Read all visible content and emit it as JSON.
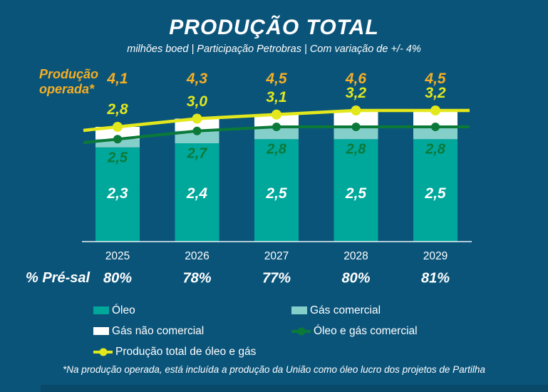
{
  "title": "PRODUÇÃO TOTAL",
  "subtitle": "milhões boed | Participação Petrobras | Com variação de +/- 4%",
  "left_labels": {
    "producao_operada": "Produção\noperada*",
    "presal": "% Pré-sal"
  },
  "footnote": "*Na produção operada, está incluída a produção da União como óleo lucro dos projetos de Partilha",
  "colors": {
    "background": "#0A547A",
    "oleo_teal": "#00A79B",
    "gas_comercial_teal": "#85CFCB",
    "gas_nao_comercial_white": "#FFFFFF",
    "linha_verde": "#0B7A38",
    "linha_amarela": "#E3E81C",
    "gold": "#F5AF24",
    "axis_line": "#EAF2F5"
  },
  "chart_data": {
    "type": "bar",
    "subtype": "stacked-bars-with-lines",
    "categories": [
      "2025",
      "2026",
      "2027",
      "2028",
      "2029"
    ],
    "ylim": [
      0,
      3.4
    ],
    "grid": false,
    "legend_position": "bottom",
    "series": [
      {
        "name": "Óleo",
        "type": "bar-segment",
        "color": "#00A79B",
        "values": [
          2.3,
          2.4,
          2.5,
          2.5,
          2.5
        ],
        "labels": [
          "2,3",
          "2,4",
          "2,5",
          "2,5",
          "2,5"
        ],
        "label_color": "#FFFFFF"
      },
      {
        "name": "Gás comercial",
        "type": "bar-segment",
        "color": "#85CFCB",
        "values": [
          0.2,
          0.3,
          0.3,
          0.3,
          0.3
        ],
        "labels": []
      },
      {
        "name": "Gás não comercial",
        "type": "bar-segment",
        "color": "#FFFFFF",
        "values": [
          0.3,
          0.3,
          0.3,
          0.4,
          0.4
        ],
        "labels": []
      },
      {
        "name": "Óleo e gás comercial",
        "type": "line",
        "color": "#0B7A38",
        "values": [
          2.5,
          2.7,
          2.8,
          2.8,
          2.8
        ],
        "labels": [
          "2,5",
          "2,7",
          "2,8",
          "2,8",
          "2,8"
        ],
        "label_color": "#0B7A38"
      },
      {
        "name": "Produção total de óleo e gás",
        "type": "line",
        "color": "#E3E81C",
        "values": [
          2.8,
          3.0,
          3.1,
          3.2,
          3.2
        ],
        "labels": [
          "2,8",
          "3,0",
          "3,1",
          "3,2",
          "3,2"
        ],
        "label_color": "#E3E81C"
      }
    ],
    "producao_operada": {
      "values": [
        4.1,
        4.3,
        4.5,
        4.6,
        4.5
      ],
      "labels": [
        "4,1",
        "4,3",
        "4,5",
        "4,6",
        "4,5"
      ]
    },
    "pre_sal": [
      "80%",
      "78%",
      "77%",
      "80%",
      "81%"
    ]
  },
  "legend": {
    "rows": [
      [
        {
          "label": "Óleo",
          "swatch": "fill",
          "color": "#00A79B"
        },
        {
          "label": "Gás comercial",
          "swatch": "fill",
          "color": "#85CFCB"
        }
      ],
      [
        {
          "label": "Gás não comercial",
          "swatch": "fill",
          "color": "#FFFFFF"
        },
        {
          "label": "Óleo e gás comercial",
          "swatch": "line",
          "color": "#0B7A38"
        }
      ],
      [
        {
          "label": "Produção total de óleo e gás",
          "swatch": "line",
          "color": "#E3E81C"
        }
      ]
    ]
  }
}
